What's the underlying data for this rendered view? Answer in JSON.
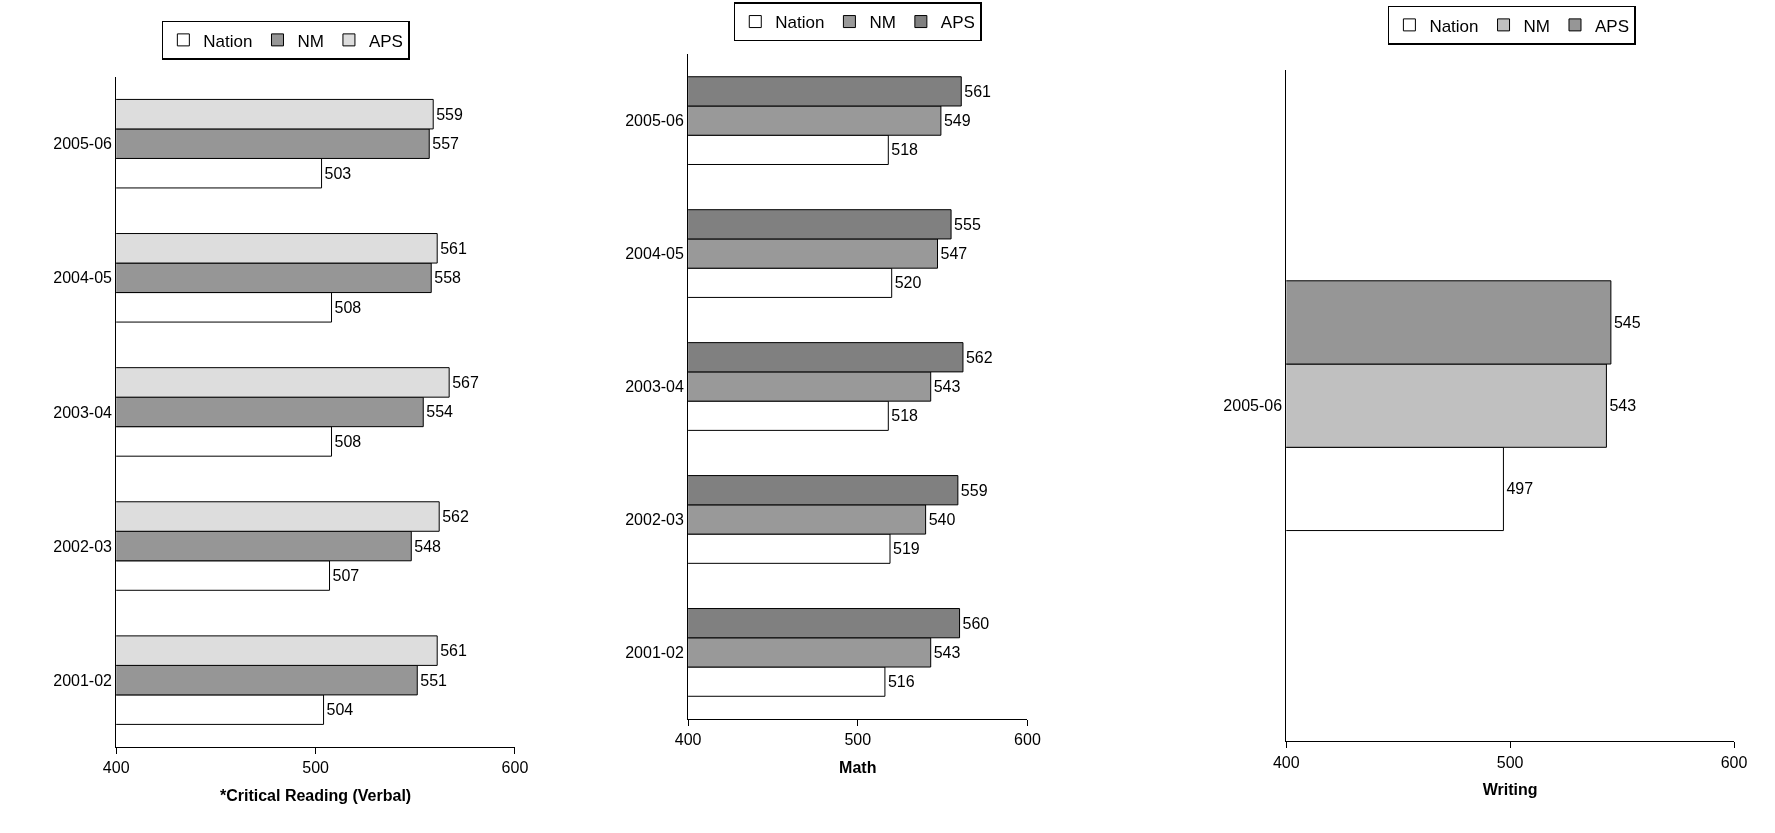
{
  "chart_data": [
    {
      "type": "bar",
      "orientation": "horizontal",
      "xlabel": "*Critical Reading (Verbal)",
      "categories": [
        "2005-06",
        "2004-05",
        "2003-04",
        "2002-03",
        "2001-02"
      ],
      "xlim": [
        400,
        600
      ],
      "xticks": [
        400,
        500,
        600
      ],
      "data_labels": true,
      "legend": "top",
      "series": [
        {
          "name": "Nation",
          "color": "#ffffff",
          "values": [
            503,
            508,
            508,
            507,
            504
          ]
        },
        {
          "name": "NM",
          "color": "#969696",
          "values": [
            557,
            558,
            554,
            548,
            551
          ]
        },
        {
          "name": "APS",
          "color": "#dddddd",
          "values": [
            559,
            561,
            567,
            562,
            561
          ]
        }
      ]
    },
    {
      "type": "bar",
      "orientation": "horizontal",
      "xlabel": "Math",
      "categories": [
        "2005-06",
        "2004-05",
        "2003-04",
        "2002-03",
        "2001-02"
      ],
      "xlim": [
        400,
        600
      ],
      "xticks": [
        400,
        500,
        600
      ],
      "data_labels": true,
      "legend": "top",
      "series": [
        {
          "name": "Nation",
          "color": "#ffffff",
          "values": [
            518,
            520,
            518,
            519,
            516
          ]
        },
        {
          "name": "NM",
          "color": "#999999",
          "values": [
            549,
            547,
            543,
            540,
            543
          ]
        },
        {
          "name": "APS",
          "color": "#808080",
          "values": [
            561,
            555,
            562,
            559,
            560
          ]
        }
      ]
    },
    {
      "type": "bar",
      "orientation": "horizontal",
      "xlabel": "Writing",
      "categories": [
        "2005-06"
      ],
      "xlim": [
        400,
        600
      ],
      "xticks": [
        400,
        500,
        600
      ],
      "data_labels": true,
      "legend": "top",
      "series": [
        {
          "name": "Nation",
          "color": "#ffffff",
          "values": [
            497
          ]
        },
        {
          "name": "NM",
          "color": "#c0c0c0",
          "values": [
            543
          ]
        },
        {
          "name": "APS",
          "color": "#969696",
          "values": [
            545
          ]
        }
      ]
    }
  ]
}
